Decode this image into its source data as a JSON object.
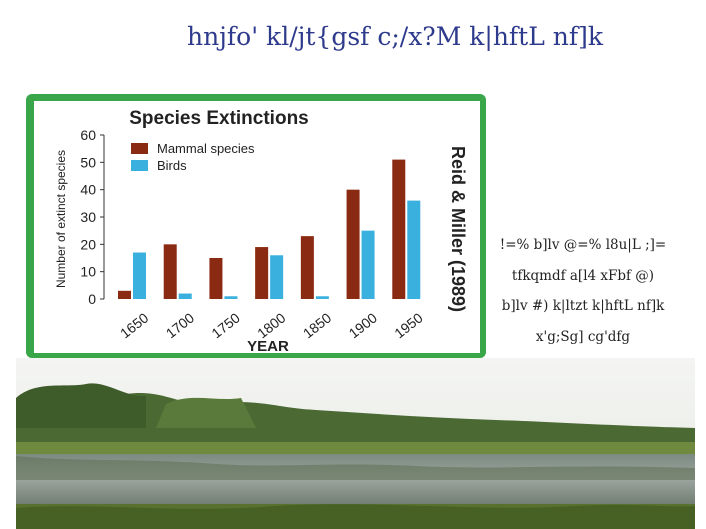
{
  "slide": {
    "title": "hnjfo' kl/jt{gsf c;/x?M k|hftL nf]k",
    "caption_lines": [
      "!=% b]lv @=% l8u|L ;]=",
      "tfkqmdf a[l4 xFbf @)",
      "b]lv #) k|ltzt k|hftL nf]k",
      "x'g;Sg] cg'dfg"
    ],
    "photo_description": ""
  },
  "chart_data": {
    "type": "bar",
    "title": "Species Extinctions",
    "xlabel": "YEAR",
    "ylabel": "Number of extinct species",
    "categories": [
      "1650",
      "1700",
      "1750",
      "1800",
      "1850",
      "1900",
      "1950"
    ],
    "series": [
      {
        "name": "Mammal species",
        "color": "#8b2a12",
        "values": [
          3,
          20,
          15,
          19,
          23,
          40,
          51
        ]
      },
      {
        "name": "Birds",
        "color": "#3ab0de",
        "values": [
          17,
          2,
          1,
          16,
          1,
          25,
          36
        ]
      }
    ],
    "ylim": [
      0,
      60
    ],
    "yticks": [
      0,
      10,
      20,
      30,
      40,
      50,
      60
    ],
    "legend": "top-left",
    "grid": false,
    "source_label": "Reid & Miller (1989)"
  }
}
